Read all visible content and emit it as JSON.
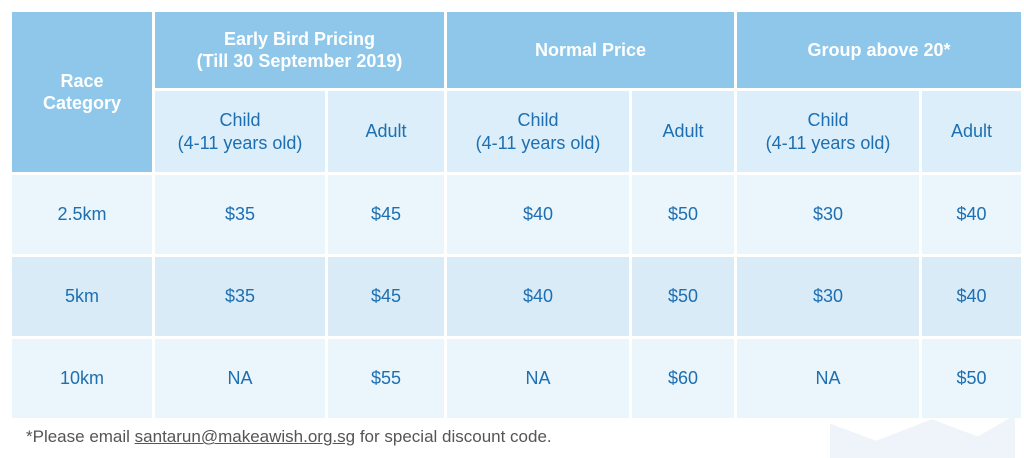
{
  "table": {
    "corner_header": [
      "Race",
      "Category"
    ],
    "groups": [
      {
        "title": [
          "Early Bird Pricing",
          "(Till 30 September 2019)"
        ]
      },
      {
        "title": [
          "Normal Price"
        ]
      },
      {
        "title": [
          "Group above 20*"
        ]
      }
    ],
    "subheaders": {
      "child": [
        "Child",
        "(4-11 years old)"
      ],
      "adult": "Adult"
    },
    "rows": [
      {
        "category": "2.5km",
        "values": [
          "$35",
          "$45",
          "$40",
          "$50",
          "$30",
          "$40"
        ]
      },
      {
        "category": "5km",
        "values": [
          "$35",
          "$45",
          "$40",
          "$50",
          "$30",
          "$40"
        ]
      },
      {
        "category": "10km",
        "values": [
          "NA",
          "$55",
          "NA",
          "$60",
          "NA",
          "$50"
        ]
      }
    ]
  },
  "footnote": {
    "prefix": "*Please email ",
    "email": "santarun@makeawish.org.sg",
    "suffix": " for special discount code."
  },
  "colors": {
    "header_bg": "#8ec7ea",
    "subheader_bg": "#dbeef9",
    "row_light": "#eaf5fc",
    "row_mid": "#d8ebf7",
    "text_blue": "#1d6fb1"
  }
}
